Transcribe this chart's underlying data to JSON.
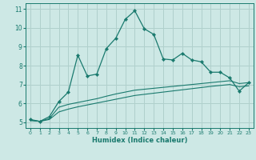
{
  "xlabel": "Humidex (Indice chaleur)",
  "bg_color": "#cde8e5",
  "grid_color": "#b0d0cc",
  "line_color": "#1a7a6e",
  "xlim": [
    -0.5,
    23.5
  ],
  "ylim": [
    4.7,
    11.3
  ],
  "xticks": [
    0,
    1,
    2,
    3,
    4,
    5,
    6,
    7,
    8,
    9,
    10,
    11,
    12,
    13,
    14,
    15,
    16,
    17,
    18,
    19,
    20,
    21,
    22,
    23
  ],
  "yticks": [
    5,
    6,
    7,
    8,
    9,
    10,
    11
  ],
  "series1_x": [
    0,
    1,
    2,
    3,
    4,
    5,
    6,
    7,
    8,
    9,
    10,
    11,
    12,
    13,
    14,
    15,
    16,
    17,
    18,
    19,
    20,
    21,
    22,
    23
  ],
  "series1_y": [
    5.15,
    5.05,
    5.3,
    6.1,
    6.6,
    8.55,
    7.45,
    7.55,
    8.9,
    9.45,
    10.45,
    10.9,
    9.95,
    9.65,
    8.35,
    8.3,
    8.65,
    8.3,
    8.2,
    7.65,
    7.65,
    7.35,
    6.65,
    7.1
  ],
  "series2_x": [
    0,
    1,
    2,
    3,
    4,
    5,
    6,
    7,
    8,
    9,
    10,
    11,
    12,
    13,
    14,
    15,
    16,
    17,
    18,
    19,
    20,
    21,
    22,
    23
  ],
  "series2_y": [
    5.1,
    5.05,
    5.2,
    5.8,
    5.95,
    6.05,
    6.15,
    6.25,
    6.38,
    6.5,
    6.6,
    6.7,
    6.75,
    6.8,
    6.85,
    6.9,
    6.95,
    7.0,
    7.05,
    7.1,
    7.15,
    7.2,
    7.05,
    7.1
  ],
  "series3_x": [
    0,
    1,
    2,
    3,
    4,
    5,
    6,
    7,
    8,
    9,
    10,
    11,
    12,
    13,
    14,
    15,
    16,
    17,
    18,
    19,
    20,
    21,
    22,
    23
  ],
  "series3_y": [
    5.1,
    5.05,
    5.15,
    5.55,
    5.7,
    5.82,
    5.92,
    6.02,
    6.12,
    6.22,
    6.32,
    6.42,
    6.48,
    6.54,
    6.6,
    6.66,
    6.72,
    6.78,
    6.84,
    6.9,
    6.95,
    7.0,
    6.88,
    6.93
  ]
}
